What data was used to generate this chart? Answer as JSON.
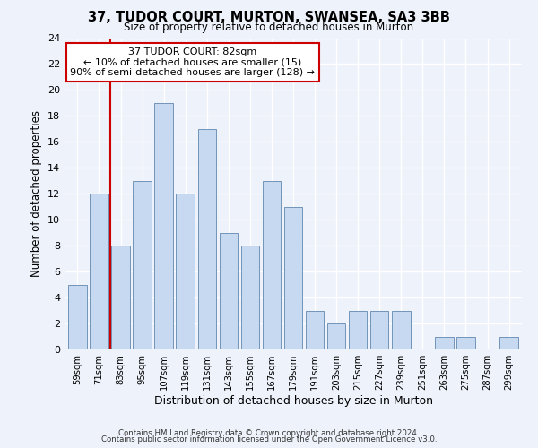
{
  "title": "37, TUDOR COURT, MURTON, SWANSEA, SA3 3BB",
  "subtitle": "Size of property relative to detached houses in Murton",
  "xlabel": "Distribution of detached houses by size in Murton",
  "ylabel": "Number of detached properties",
  "bin_labels": [
    "59sqm",
    "71sqm",
    "83sqm",
    "95sqm",
    "107sqm",
    "119sqm",
    "131sqm",
    "143sqm",
    "155sqm",
    "167sqm",
    "179sqm",
    "191sqm",
    "203sqm",
    "215sqm",
    "227sqm",
    "239sqm",
    "251sqm",
    "263sqm",
    "275sqm",
    "287sqm",
    "299sqm"
  ],
  "bar_heights": [
    5,
    12,
    8,
    13,
    19,
    12,
    17,
    9,
    8,
    13,
    11,
    3,
    2,
    3,
    3,
    3,
    0,
    1,
    1,
    0,
    1
  ],
  "bar_color": "#c6d9f0",
  "bar_edge_color": "#7094b8",
  "highlight_line_index": 2,
  "highlight_line_color": "#cc0000",
  "annotation_line1": "37 TUDOR COURT: 82sqm",
  "annotation_line2": "← 10% of detached houses are smaller (15)",
  "annotation_line3": "90% of semi-detached houses are larger (128) →",
  "annotation_box_color": "#ffffff",
  "annotation_box_edge": "#cc0000",
  "ylim": [
    0,
    24
  ],
  "yticks": [
    0,
    2,
    4,
    6,
    8,
    10,
    12,
    14,
    16,
    18,
    20,
    22,
    24
  ],
  "footer_line1": "Contains HM Land Registry data © Crown copyright and database right 2024.",
  "footer_line2": "Contains public sector information licensed under the Open Government Licence v3.0.",
  "background_color": "#eef2fa"
}
